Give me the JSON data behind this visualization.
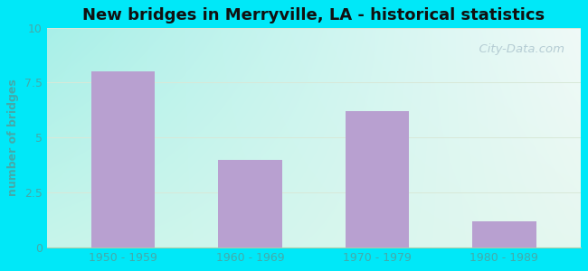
{
  "title": "New bridges in Merryville, LA - historical statistics",
  "categories": [
    "1950 - 1959",
    "1960 - 1969",
    "1970 - 1979",
    "1980 - 1989"
  ],
  "values": [
    8,
    4,
    6.2,
    1.2
  ],
  "bar_color": "#b8a0d0",
  "ylabel": "number of bridges",
  "ylim": [
    0,
    10
  ],
  "yticks": [
    0,
    2.5,
    5,
    7.5,
    10
  ],
  "background_outer": "#00e8f8",
  "bg_topleft": "#a8f0e8",
  "bg_topright": "#e8f8f0",
  "bg_bottomleft": "#c0f0e8",
  "bg_bottomright": "#e0f5e8",
  "title_fontsize": 13,
  "tick_label_color": "#44aaaa",
  "ylabel_color": "#44aaaa",
  "watermark_text": "  City-Data.com",
  "watermark_color": "#b0c8d0",
  "grid_color": "#d8e8d8"
}
